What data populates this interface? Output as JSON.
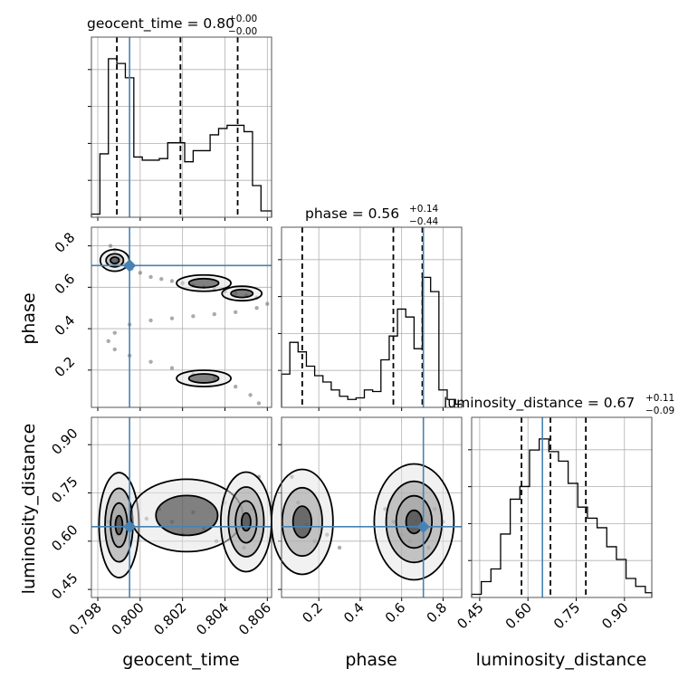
{
  "chart_data": {
    "type": "corner",
    "parameters": [
      "geocent_time",
      "phase",
      "luminosity_distance"
    ],
    "axis_labels": {
      "x": [
        "geocent_time",
        "phase",
        "luminosity_distance"
      ],
      "y": [
        "phase",
        "luminosity_distance"
      ]
    },
    "titles": [
      {
        "parameter": "geocent_time",
        "text": "geocent_time = 0.80",
        "plus": "+0.00",
        "minus": "−0.00"
      },
      {
        "parameter": "phase",
        "text": "phase = 0.56",
        "plus": "+0.14",
        "minus": "−0.44"
      },
      {
        "parameter": "luminosity_distance",
        "text": "luminosity_distance = 0.67",
        "plus": "+0.11",
        "minus": "−0.09"
      }
    ],
    "ranges": {
      "geocent_time": [
        0.7977,
        0.8062
      ],
      "phase": [
        0.02,
        0.89
      ],
      "luminosity_distance": [
        0.425,
        0.985
      ]
    },
    "ticks": {
      "geocent_time": [
        "0.798",
        "0.800",
        "0.802",
        "0.804",
        "0.806"
      ],
      "phase_y": [
        "0.2",
        "0.4",
        "0.6",
        "0.8"
      ],
      "phase_x": [
        "0.2",
        "0.4",
        "0.6",
        "0.8"
      ],
      "luminosity_distance": [
        "0.45",
        "0.60",
        "0.75",
        "0.90"
      ]
    },
    "truths": {
      "geocent_time": 0.7995,
      "phase": 0.705,
      "luminosity_distance": 0.645
    },
    "quantiles": {
      "geocent_time": [
        0.7989,
        0.8019,
        0.8046
      ],
      "phase": [
        0.12,
        0.56,
        0.7
      ],
      "luminosity_distance": [
        0.58,
        0.67,
        0.78
      ]
    },
    "histograms": {
      "geocent_time": {
        "bins": [
          0.7977,
          0.7981,
          0.7985,
          0.7989,
          0.7993,
          0.7997,
          0.8001,
          0.8005,
          0.8009,
          0.8013,
          0.8017,
          0.8021,
          0.8025,
          0.8029,
          0.8033,
          0.8037,
          0.8041,
          0.8045,
          0.8049,
          0.8053,
          0.8057,
          0.8062
        ],
        "counts": [
          0.02,
          0.4,
          1.0,
          0.97,
          0.88,
          0.38,
          0.36,
          0.36,
          0.37,
          0.47,
          0.47,
          0.35,
          0.42,
          0.42,
          0.52,
          0.56,
          0.58,
          0.58,
          0.54,
          0.2,
          0.04
        ]
      },
      "phase": {
        "bins": [
          0.02,
          0.06,
          0.1,
          0.14,
          0.18,
          0.22,
          0.26,
          0.3,
          0.34,
          0.38,
          0.42,
          0.46,
          0.5,
          0.54,
          0.58,
          0.62,
          0.66,
          0.7,
          0.74,
          0.78,
          0.82,
          0.86,
          0.89
        ],
        "counts": [
          0.21,
          0.41,
          0.35,
          0.26,
          0.2,
          0.16,
          0.11,
          0.07,
          0.05,
          0.06,
          0.11,
          0.1,
          0.3,
          0.45,
          0.62,
          0.57,
          0.37,
          0.82,
          0.73,
          0.11,
          0.05,
          0.02
        ]
      },
      "luminosity_distance": {
        "bins": [
          0.425,
          0.455,
          0.485,
          0.515,
          0.545,
          0.575,
          0.605,
          0.635,
          0.665,
          0.695,
          0.725,
          0.755,
          0.785,
          0.815,
          0.845,
          0.875,
          0.905,
          0.935,
          0.965,
          0.985
        ],
        "counts": [
          0.02,
          0.1,
          0.18,
          0.4,
          0.62,
          0.7,
          0.93,
          1.0,
          0.92,
          0.86,
          0.72,
          0.57,
          0.5,
          0.44,
          0.32,
          0.24,
          0.12,
          0.07,
          0.03
        ]
      }
    },
    "pair_samples": {
      "phase_vs_geocent_time": [
        [
          0.7986,
          0.8
        ],
        [
          0.7988,
          0.78
        ],
        [
          0.799,
          0.74
        ],
        [
          0.7993,
          0.71
        ],
        [
          0.7996,
          0.69
        ],
        [
          0.8,
          0.67
        ],
        [
          0.8005,
          0.65
        ],
        [
          0.801,
          0.64
        ],
        [
          0.8015,
          0.63
        ],
        [
          0.802,
          0.62
        ],
        [
          0.8025,
          0.61
        ],
        [
          0.803,
          0.6
        ],
        [
          0.8035,
          0.59
        ],
        [
          0.804,
          0.58
        ],
        [
          0.8045,
          0.57
        ],
        [
          0.805,
          0.56
        ],
        [
          0.8055,
          0.55
        ],
        [
          0.806,
          0.52
        ],
        [
          0.8055,
          0.5
        ],
        [
          0.8045,
          0.48
        ],
        [
          0.8035,
          0.47
        ],
        [
          0.8025,
          0.46
        ],
        [
          0.8015,
          0.45
        ],
        [
          0.8005,
          0.44
        ],
        [
          0.7995,
          0.42
        ],
        [
          0.7988,
          0.38
        ],
        [
          0.7985,
          0.34
        ],
        [
          0.7988,
          0.3
        ],
        [
          0.7995,
          0.27
        ],
        [
          0.8005,
          0.24
        ],
        [
          0.8015,
          0.21
        ],
        [
          0.8025,
          0.18
        ],
        [
          0.8035,
          0.16
        ],
        [
          0.8045,
          0.12
        ],
        [
          0.8052,
          0.08
        ],
        [
          0.8056,
          0.04
        ]
      ],
      "luminosity_distance_vs_geocent_time": [
        [
          0.7985,
          0.66
        ],
        [
          0.7989,
          0.62
        ],
        [
          0.7993,
          0.7
        ],
        [
          0.7998,
          0.64
        ],
        [
          0.8003,
          0.67
        ],
        [
          0.8009,
          0.7
        ],
        [
          0.8015,
          0.66
        ],
        [
          0.802,
          0.62
        ],
        [
          0.8025,
          0.69
        ],
        [
          0.803,
          0.64
        ],
        [
          0.8036,
          0.6
        ],
        [
          0.804,
          0.72
        ],
        [
          0.8045,
          0.66
        ],
        [
          0.8049,
          0.58
        ],
        [
          0.8053,
          0.7
        ],
        [
          0.8056,
          0.8
        ]
      ],
      "luminosity_distance_vs_phase": [
        [
          0.07,
          0.8
        ],
        [
          0.1,
          0.72
        ],
        [
          0.14,
          0.65
        ],
        [
          0.18,
          0.6
        ],
        [
          0.24,
          0.62
        ],
        [
          0.3,
          0.58
        ],
        [
          0.52,
          0.7
        ],
        [
          0.56,
          0.66
        ],
        [
          0.6,
          0.62
        ],
        [
          0.64,
          0.6
        ],
        [
          0.67,
          0.66
        ],
        [
          0.7,
          0.64
        ],
        [
          0.73,
          0.58
        ],
        [
          0.76,
          0.7
        ],
        [
          0.8,
          0.66
        ]
      ]
    }
  }
}
